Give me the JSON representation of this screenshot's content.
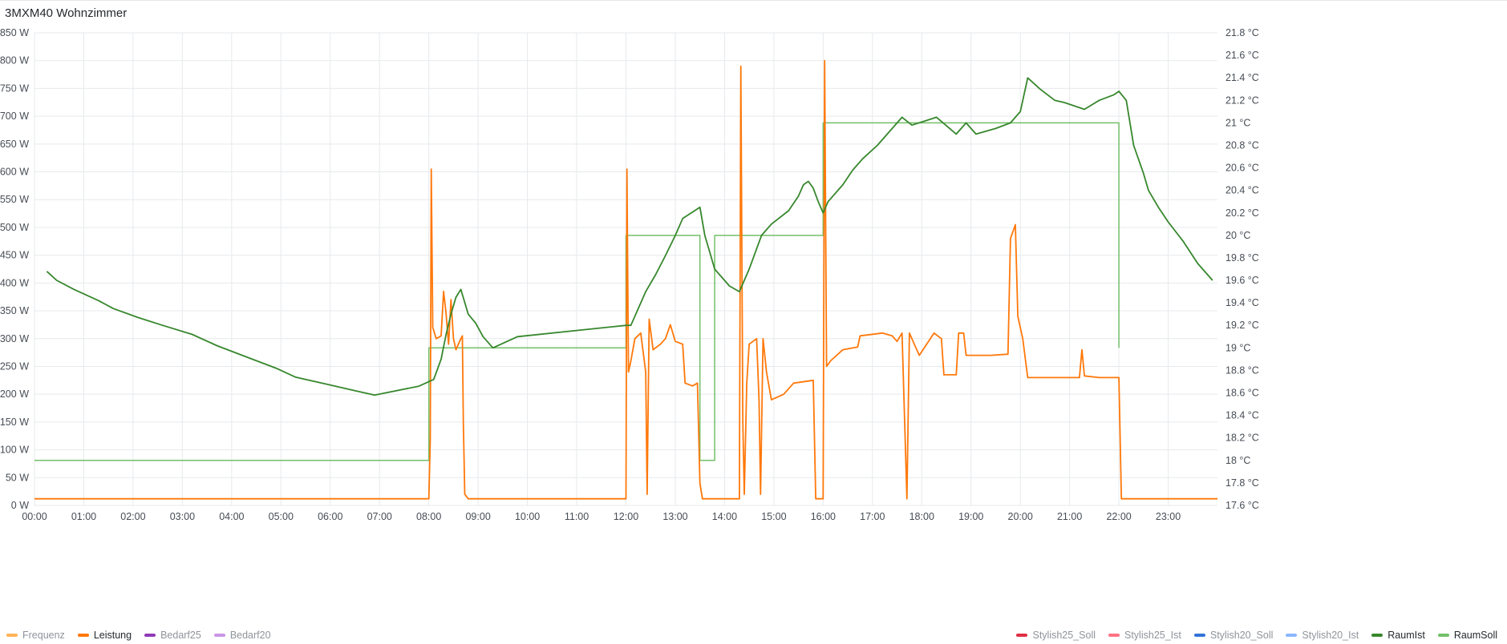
{
  "panel": {
    "title": "3MXM40 Wohnzimmer"
  },
  "legend_left": [
    {
      "name": "Frequenz",
      "color": "#ffb357",
      "visible": false
    },
    {
      "name": "Leistung",
      "color": "#ff780a",
      "visible": true
    },
    {
      "name": "Bedarf25",
      "color": "#8f3bb8",
      "visible": false
    },
    {
      "name": "Bedarf20",
      "color": "#ca95e5",
      "visible": false
    }
  ],
  "legend_right": [
    {
      "name": "Stylish25_Soll",
      "color": "#e02f44",
      "visible": false
    },
    {
      "name": "Stylish25_Ist",
      "color": "#ff7383",
      "visible": false
    },
    {
      "name": "Stylish20_Soll",
      "color": "#3274d9",
      "visible": false
    },
    {
      "name": "Stylish20_Ist",
      "color": "#8ab8ff",
      "visible": false
    },
    {
      "name": "RaumIst",
      "color": "#37872d",
      "visible": true
    },
    {
      "name": "RaumSoll",
      "color": "#73bf69",
      "visible": true
    }
  ],
  "chart_data": {
    "type": "line",
    "x_ticks": [
      "00:00",
      "01:00",
      "02:00",
      "03:00",
      "04:00",
      "05:00",
      "06:00",
      "07:00",
      "08:00",
      "09:00",
      "10:00",
      "11:00",
      "12:00",
      "13:00",
      "14:00",
      "15:00",
      "16:00",
      "17:00",
      "18:00",
      "19:00",
      "20:00",
      "21:00",
      "22:00",
      "23:00"
    ],
    "x_range_hours": [
      0,
      24
    ],
    "y_left": {
      "unit": "W",
      "range": [
        0,
        850
      ],
      "ticks": [
        "0 W",
        "50 W",
        "100 W",
        "150 W",
        "200 W",
        "250 W",
        "300 W",
        "350 W",
        "400 W",
        "450 W",
        "500 W",
        "550 W",
        "600 W",
        "650 W",
        "700 W",
        "750 W",
        "800 W",
        "850 W"
      ],
      "tick_values": [
        0,
        50,
        100,
        150,
        200,
        250,
        300,
        350,
        400,
        450,
        500,
        550,
        600,
        650,
        700,
        750,
        800,
        850
      ]
    },
    "y_right": {
      "unit": "°C",
      "range": [
        17.6,
        21.8
      ],
      "ticks": [
        "17.6 °C",
        "17.8 °C",
        "18 °C",
        "18.2 °C",
        "18.4 °C",
        "18.6 °C",
        "18.8 °C",
        "19 °C",
        "19.2 °C",
        "19.4 °C",
        "19.6 °C",
        "19.8 °C",
        "20 °C",
        "20.2 °C",
        "20.4 °C",
        "20.6 °C",
        "20.8 °C",
        "21 °C",
        "21.2 °C",
        "21.4 °C",
        "21.6 °C",
        "21.8 °C"
      ],
      "tick_values": [
        17.6,
        17.8,
        18,
        18.2,
        18.4,
        18.6,
        18.8,
        19,
        19.2,
        19.4,
        19.6,
        19.8,
        20,
        20.2,
        20.4,
        20.6,
        20.8,
        21,
        21.2,
        21.4,
        21.6,
        21.8
      ]
    },
    "grid": true,
    "series": [
      {
        "name": "Leistung",
        "axis": "left",
        "color": "#ff780a",
        "points": [
          [
            0,
            12
          ],
          [
            8.0,
            12
          ],
          [
            8.03,
            120
          ],
          [
            8.05,
            605
          ],
          [
            8.08,
            320
          ],
          [
            8.15,
            300
          ],
          [
            8.25,
            305
          ],
          [
            8.3,
            385
          ],
          [
            8.35,
            345
          ],
          [
            8.4,
            290
          ],
          [
            8.45,
            370
          ],
          [
            8.5,
            300
          ],
          [
            8.55,
            280
          ],
          [
            8.65,
            300
          ],
          [
            8.68,
            305
          ],
          [
            8.7,
            150
          ],
          [
            8.73,
            20
          ],
          [
            8.8,
            12
          ],
          [
            12.0,
            12
          ],
          [
            12.02,
            605
          ],
          [
            12.05,
            240
          ],
          [
            12.1,
            260
          ],
          [
            12.18,
            300
          ],
          [
            12.3,
            310
          ],
          [
            12.4,
            240
          ],
          [
            12.43,
            20
          ],
          [
            12.47,
            335
          ],
          [
            12.55,
            280
          ],
          [
            12.7,
            290
          ],
          [
            12.8,
            300
          ],
          [
            12.9,
            325
          ],
          [
            13.0,
            295
          ],
          [
            13.15,
            290
          ],
          [
            13.2,
            220
          ],
          [
            13.35,
            215
          ],
          [
            13.45,
            220
          ],
          [
            13.5,
            40
          ],
          [
            13.55,
            12
          ],
          [
            14.3,
            12
          ],
          [
            14.33,
            790
          ],
          [
            14.37,
            150
          ],
          [
            14.4,
            20
          ],
          [
            14.45,
            220
          ],
          [
            14.5,
            290
          ],
          [
            14.65,
            300
          ],
          [
            14.7,
            190
          ],
          [
            14.73,
            20
          ],
          [
            14.78,
            300
          ],
          [
            14.85,
            240
          ],
          [
            14.95,
            190
          ],
          [
            15.2,
            200
          ],
          [
            15.4,
            220
          ],
          [
            15.8,
            225
          ],
          [
            15.85,
            12
          ],
          [
            16.0,
            12
          ],
          [
            16.03,
            800
          ],
          [
            16.07,
            250
          ],
          [
            16.15,
            260
          ],
          [
            16.4,
            280
          ],
          [
            16.7,
            285
          ],
          [
            16.75,
            305
          ],
          [
            17.2,
            310
          ],
          [
            17.4,
            305
          ],
          [
            17.5,
            295
          ],
          [
            17.6,
            310
          ],
          [
            17.7,
            12
          ],
          [
            17.75,
            310
          ],
          [
            17.85,
            290
          ],
          [
            17.95,
            270
          ],
          [
            18.1,
            290
          ],
          [
            18.25,
            310
          ],
          [
            18.4,
            300
          ],
          [
            18.45,
            235
          ],
          [
            18.7,
            235
          ],
          [
            18.75,
            310
          ],
          [
            18.85,
            310
          ],
          [
            18.9,
            270
          ],
          [
            19.1,
            270
          ],
          [
            19.4,
            270
          ],
          [
            19.75,
            272
          ],
          [
            19.8,
            480
          ],
          [
            19.9,
            505
          ],
          [
            19.95,
            340
          ],
          [
            20.05,
            300
          ],
          [
            20.15,
            230
          ],
          [
            20.5,
            230
          ],
          [
            21.2,
            230
          ],
          [
            21.25,
            280
          ],
          [
            21.3,
            233
          ],
          [
            21.6,
            230
          ],
          [
            22.0,
            230
          ],
          [
            22.05,
            12
          ],
          [
            24,
            12
          ]
        ]
      },
      {
        "name": "RaumIst",
        "axis": "right",
        "color": "#37872d",
        "points": [
          [
            0.25,
            19.68
          ],
          [
            0.45,
            19.6
          ],
          [
            0.8,
            19.52
          ],
          [
            1.3,
            19.42
          ],
          [
            1.6,
            19.35
          ],
          [
            2.1,
            19.27
          ],
          [
            2.6,
            19.2
          ],
          [
            3.2,
            19.12
          ],
          [
            3.7,
            19.02
          ],
          [
            4.3,
            18.92
          ],
          [
            4.9,
            18.82
          ],
          [
            5.3,
            18.74
          ],
          [
            5.9,
            18.68
          ],
          [
            6.5,
            18.62
          ],
          [
            6.9,
            18.58
          ],
          [
            7.8,
            18.66
          ],
          [
            8.1,
            18.72
          ],
          [
            8.25,
            18.9
          ],
          [
            8.35,
            19.12
          ],
          [
            8.45,
            19.3
          ],
          [
            8.55,
            19.45
          ],
          [
            8.65,
            19.52
          ],
          [
            8.8,
            19.3
          ],
          [
            8.95,
            19.22
          ],
          [
            9.1,
            19.1
          ],
          [
            9.3,
            19.0
          ],
          [
            9.8,
            19.1
          ],
          [
            12.0,
            19.2
          ],
          [
            12.1,
            19.2
          ],
          [
            12.4,
            19.5
          ],
          [
            12.6,
            19.65
          ],
          [
            12.8,
            19.82
          ],
          [
            13.0,
            20.0
          ],
          [
            13.15,
            20.15
          ],
          [
            13.5,
            20.25
          ],
          [
            13.6,
            20.0
          ],
          [
            13.7,
            19.85
          ],
          [
            13.8,
            19.7
          ],
          [
            14.1,
            19.55
          ],
          [
            14.3,
            19.5
          ],
          [
            14.5,
            19.7
          ],
          [
            14.6,
            19.82
          ],
          [
            14.75,
            20.0
          ],
          [
            14.95,
            20.1
          ],
          [
            15.3,
            20.22
          ],
          [
            15.5,
            20.35
          ],
          [
            15.6,
            20.45
          ],
          [
            15.7,
            20.48
          ],
          [
            15.8,
            20.42
          ],
          [
            15.9,
            20.3
          ],
          [
            16.0,
            20.2
          ],
          [
            16.1,
            20.3
          ],
          [
            16.4,
            20.45
          ],
          [
            16.6,
            20.58
          ],
          [
            16.8,
            20.68
          ],
          [
            17.1,
            20.8
          ],
          [
            17.4,
            20.95
          ],
          [
            17.6,
            21.05
          ],
          [
            17.8,
            20.98
          ],
          [
            18.3,
            21.05
          ],
          [
            18.7,
            20.9
          ],
          [
            18.9,
            21.0
          ],
          [
            19.1,
            20.9
          ],
          [
            19.5,
            20.95
          ],
          [
            19.8,
            21.0
          ],
          [
            20.0,
            21.1
          ],
          [
            20.15,
            21.4
          ],
          [
            20.4,
            21.3
          ],
          [
            20.7,
            21.2
          ],
          [
            20.9,
            21.18
          ],
          [
            21.3,
            21.12
          ],
          [
            21.6,
            21.2
          ],
          [
            21.9,
            21.25
          ],
          [
            22.0,
            21.28
          ],
          [
            22.15,
            21.2
          ],
          [
            22.3,
            20.8
          ],
          [
            22.5,
            20.55
          ],
          [
            22.6,
            20.4
          ],
          [
            22.8,
            20.25
          ],
          [
            23.0,
            20.12
          ],
          [
            23.3,
            19.95
          ],
          [
            23.6,
            19.75
          ],
          [
            23.9,
            19.6
          ]
        ]
      },
      {
        "name": "RaumSoll",
        "axis": "right",
        "color": "#73bf69",
        "points": [
          [
            0,
            18.0
          ],
          [
            8.0,
            18.0
          ],
          [
            8.0,
            19.0
          ],
          [
            12.0,
            19.0
          ],
          [
            12.0,
            20.0
          ],
          [
            13.5,
            20.0
          ],
          [
            13.5,
            18.0
          ],
          [
            13.8,
            18.0
          ],
          [
            13.8,
            20.0
          ],
          [
            16.0,
            20.0
          ],
          [
            16.0,
            21.0
          ],
          [
            22.0,
            21.0
          ],
          [
            22.0,
            19.0
          ]
        ]
      }
    ]
  }
}
